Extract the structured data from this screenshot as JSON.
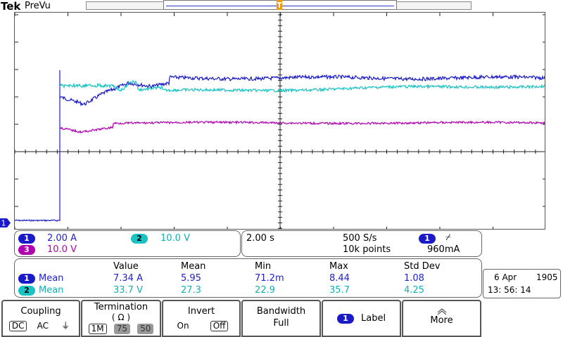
{
  "topbar": {
    "logo": "Tek",
    "mode": "PreVu"
  },
  "channels_info": {
    "ch1": {
      "num": "1",
      "scale": "2.00 A",
      "color": "#1a1ac8"
    },
    "ch2": {
      "num": "2",
      "scale": "10.0 V",
      "color": "#19c3c3"
    },
    "ch3": {
      "num": "3",
      "scale": "10.0 V",
      "color": "#b000b0"
    }
  },
  "timebase": {
    "time_per_div": "2.00 s",
    "sample_rate": "500 S/s",
    "record_length": "10k points",
    "trigger_source": "1",
    "trigger_slope": "⌿",
    "trigger_level": "960mA"
  },
  "measurements": {
    "headers": [
      "Value",
      "Mean",
      "Min",
      "Max",
      "Std Dev"
    ],
    "rows": [
      {
        "ch": "1",
        "name": "Mean",
        "value": "7.34 A",
        "mean": "5.95",
        "min": "71.2m",
        "max": "8.44",
        "std": "1.08"
      },
      {
        "ch": "2",
        "name": "Mean",
        "value": "33.7 V",
        "mean": "27.3",
        "min": "22.9",
        "max": "35.7",
        "std": "4.25"
      }
    ]
  },
  "datetime": {
    "date": "6 Apr",
    "year": "1905",
    "time": "13: 56: 14"
  },
  "softkeys": {
    "coupling": {
      "label": "Coupling",
      "options": [
        "DC",
        "AC",
        "⏚"
      ]
    },
    "termination": {
      "label": "Termination",
      "unit": "( Ω )",
      "options": [
        "1M",
        "75",
        "50"
      ]
    },
    "invert": {
      "label": "Invert",
      "options": [
        "On",
        "Off"
      ]
    },
    "bandwidth": {
      "label": "Bandwidth",
      "value": "Full"
    },
    "label": {
      "ch": "1",
      "label": "Label"
    },
    "more": {
      "label": "More"
    }
  },
  "markers": {
    "ch1_ground": "1"
  }
}
